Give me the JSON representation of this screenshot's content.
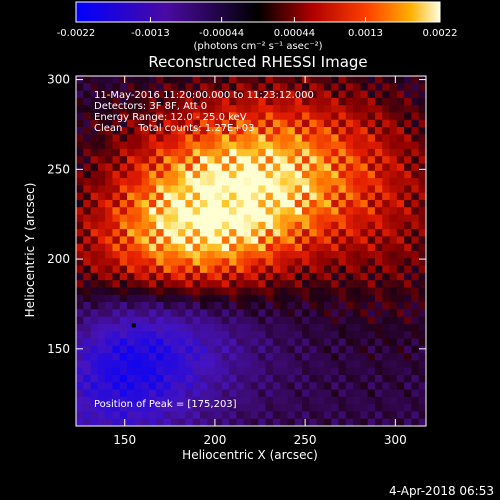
{
  "chart_data": {
    "type": "heatmap",
    "title": "Reconstructed RHESSI Image",
    "xlabel": "Heliocentric X (arcsec)",
    "ylabel": "Heliocentric Y (arcsec)",
    "xlim": [
      123,
      317
    ],
    "ylim": [
      107,
      302
    ],
    "x_ticks": [
      150,
      200,
      250,
      300
    ],
    "y_ticks": [
      150,
      200,
      250,
      300
    ],
    "colorbar": {
      "range": [
        -0.0022,
        0.0022
      ],
      "ticks": [
        "-0.0022",
        "-0.0013",
        "-0.00044",
        "0.00044",
        "0.0013",
        "0.0022"
      ],
      "unit_label": "(photons cm⁻² s⁻¹ asec⁻²)"
    },
    "annotations": [
      "11-May-2016 11:20:00.000 to 11:23:12.000",
      "Detectors: 3F 8F, Att 0",
      "Energy Range: 12.0 - 25.0 keV",
      "Clean     Total counts: 1.27E+03"
    ],
    "peak_label": "Position of Peak = [175,203]",
    "peak_position": [
      175,
      203
    ],
    "minimum_position": [
      155,
      163
    ],
    "grid": false
  },
  "timestamp": "4-Apr-2018 06:53"
}
